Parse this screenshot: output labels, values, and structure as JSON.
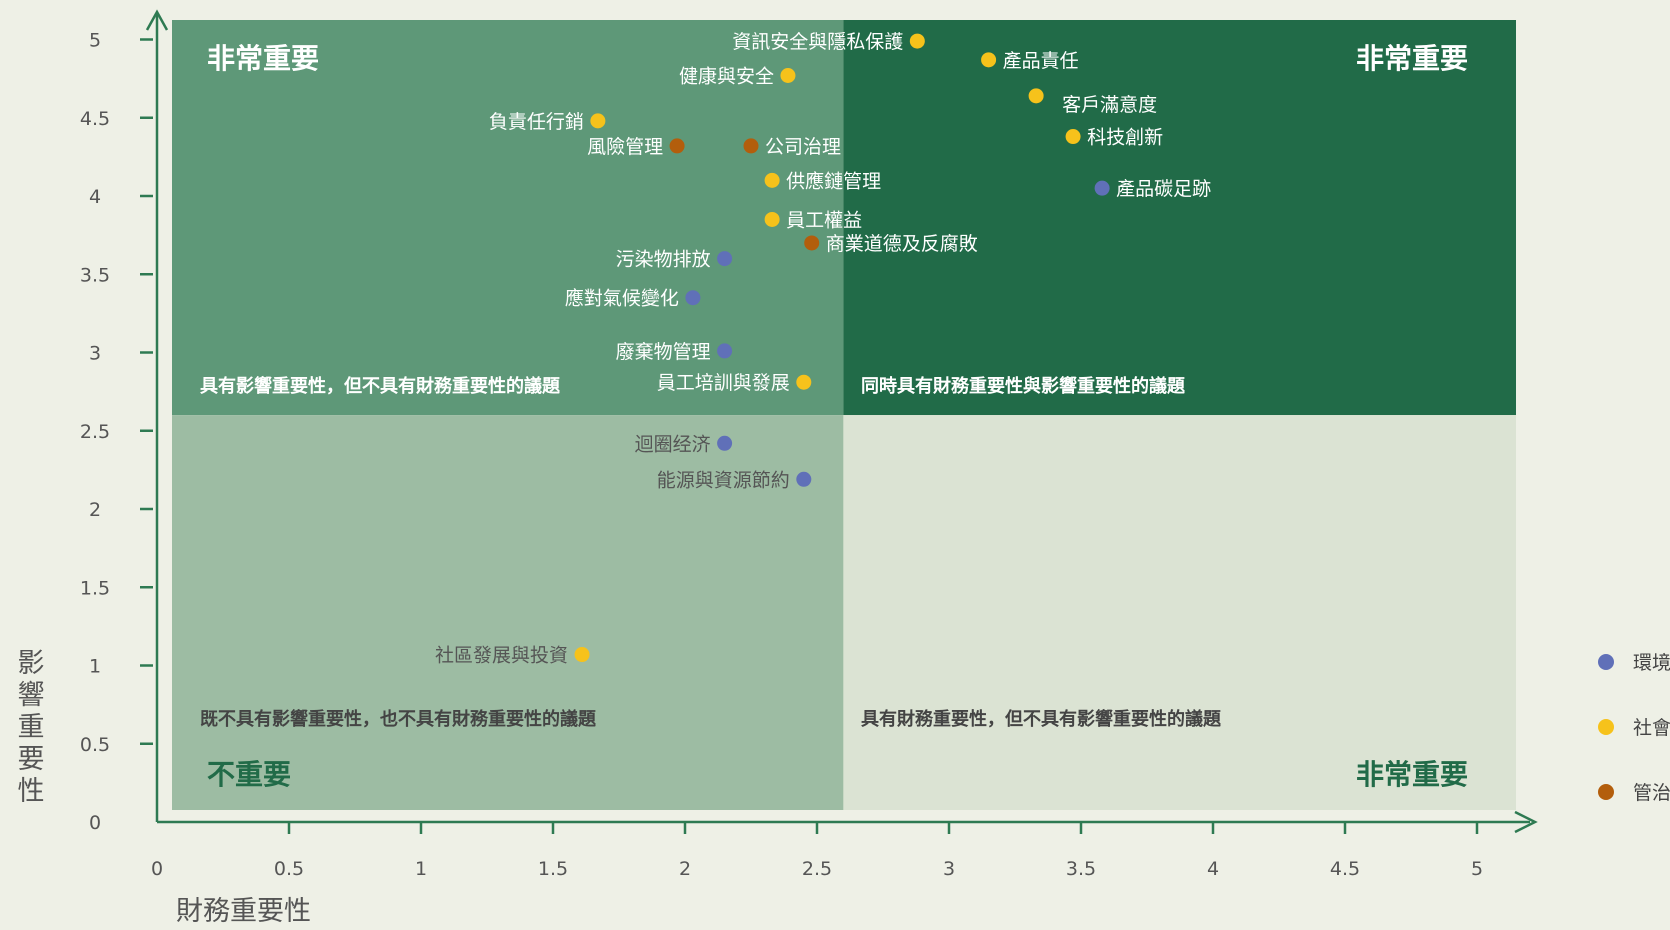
{
  "chart_data": {
    "type": "scatter",
    "xlabel": "財務重要性",
    "ylabel": "影響重要性",
    "xlim": [
      0,
      5
    ],
    "ylim": [
      0,
      5
    ],
    "x_ticks": [
      "0",
      "0.5",
      "1",
      "1.5",
      "2",
      "2.5",
      "3",
      "3.5",
      "4",
      "4.5",
      "5"
    ],
    "y_ticks": [
      "0",
      "0.5",
      "1",
      "1.5",
      "2",
      "2.5",
      "3",
      "3.5",
      "4",
      "4.5",
      "5"
    ],
    "grid": false,
    "legend_position": "right",
    "quadrant_split": {
      "x": 2.6,
      "y": 2.6
    },
    "quadrants": {
      "top_left": {
        "corner": "非常重要",
        "description": "具有影響重要性，但不具有財務重要性的議題",
        "color": "#5e9878"
      },
      "top_right": {
        "corner": "非常重要",
        "description": "同時具有財務重要性與影響重要性的議題",
        "color": "#216b48"
      },
      "bottom_left": {
        "corner": "不重要",
        "description": "既不具有影響重要性，也不具有財務重要性的議題",
        "color": "#9dbca3"
      },
      "bottom_right": {
        "corner": "非常重要",
        "description": "具有財務重要性，但不具有影響重要性的議題",
        "color": "#dbe3d3"
      }
    },
    "series": [
      {
        "name": "環境",
        "color": "#6070b8",
        "points": [
          {
            "label": "產品碳足跡",
            "x": 3.58,
            "y": 4.05
          },
          {
            "label": "污染物排放",
            "x": 2.15,
            "y": 3.6
          },
          {
            "label": "應對氣候變化",
            "x": 2.03,
            "y": 3.35
          },
          {
            "label": "廢棄物管理",
            "x": 2.15,
            "y": 3.01
          },
          {
            "label": "迴圈经济",
            "x": 2.15,
            "y": 2.42
          },
          {
            "label": "能源與資源節約",
            "x": 2.45,
            "y": 2.19
          }
        ]
      },
      {
        "name": "社會",
        "color": "#f6c21b",
        "points": [
          {
            "label": "資訊安全與隱私保護",
            "x": 2.88,
            "y": 4.99
          },
          {
            "label": "健康與安全",
            "x": 2.39,
            "y": 4.77
          },
          {
            "label": "產品責任",
            "x": 3.15,
            "y": 4.87
          },
          {
            "label": "客戶滿意度",
            "x": 3.33,
            "y": 4.64
          },
          {
            "label": "科技創新",
            "x": 3.47,
            "y": 4.38
          },
          {
            "label": "負責任行銷",
            "x": 1.67,
            "y": 4.48
          },
          {
            "label": "供應鏈管理",
            "x": 2.33,
            "y": 4.1
          },
          {
            "label": "員工權益",
            "x": 2.33,
            "y": 3.85
          },
          {
            "label": "員工培訓與發展",
            "x": 2.45,
            "y": 2.81
          },
          {
            "label": "社區發展與投資",
            "x": 1.61,
            "y": 1.07
          }
        ]
      },
      {
        "name": "管治",
        "color": "#b35e0c",
        "points": [
          {
            "label": "風險管理",
            "x": 1.97,
            "y": 4.32
          },
          {
            "label": "公司治理",
            "x": 2.25,
            "y": 4.32
          },
          {
            "label": "商業道德及反腐敗",
            "x": 2.48,
            "y": 3.7
          }
        ]
      }
    ]
  }
}
